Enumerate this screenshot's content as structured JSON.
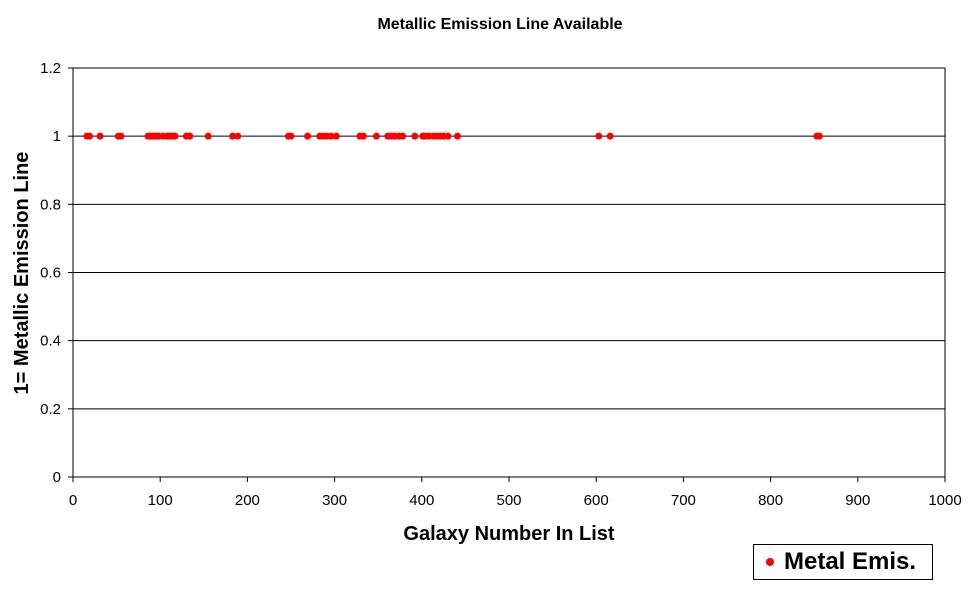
{
  "chart_data": {
    "type": "scatter",
    "title": "Metallic Emission Line Available",
    "xlabel": "Galaxy Number In List",
    "ylabel": "1= Metallic Emission Line",
    "xlim": [
      0,
      1000
    ],
    "ylim": [
      0,
      1.2
    ],
    "x_ticks": [
      "0",
      "100",
      "200",
      "300",
      "400",
      "500",
      "600",
      "700",
      "800",
      "900",
      "1000"
    ],
    "y_ticks": [
      "0",
      "0.2",
      "0.4",
      "0.6",
      "0.8",
      "1",
      "1.2"
    ],
    "grid": true,
    "legend_position": "bottom-right",
    "series": [
      {
        "name": "Metal Emis.",
        "color": "#ff0000",
        "x": [
          16,
          19,
          31,
          52,
          55,
          86,
          89,
          92,
          95,
          98,
          103,
          108,
          111,
          114,
          117,
          130,
          134,
          155,
          183,
          189,
          247,
          250,
          269,
          283,
          287,
          291,
          296,
          302,
          329,
          333,
          348,
          361,
          365,
          369,
          374,
          378,
          392,
          401,
          404,
          408,
          413,
          417,
          421,
          425,
          430,
          441,
          603,
          616,
          853,
          856
        ],
        "y": [
          1,
          1,
          1,
          1,
          1,
          1,
          1,
          1,
          1,
          1,
          1,
          1,
          1,
          1,
          1,
          1,
          1,
          1,
          1,
          1,
          1,
          1,
          1,
          1,
          1,
          1,
          1,
          1,
          1,
          1,
          1,
          1,
          1,
          1,
          1,
          1,
          1,
          1,
          1,
          1,
          1,
          1,
          1,
          1,
          1,
          1,
          1,
          1,
          1,
          1
        ]
      }
    ]
  }
}
